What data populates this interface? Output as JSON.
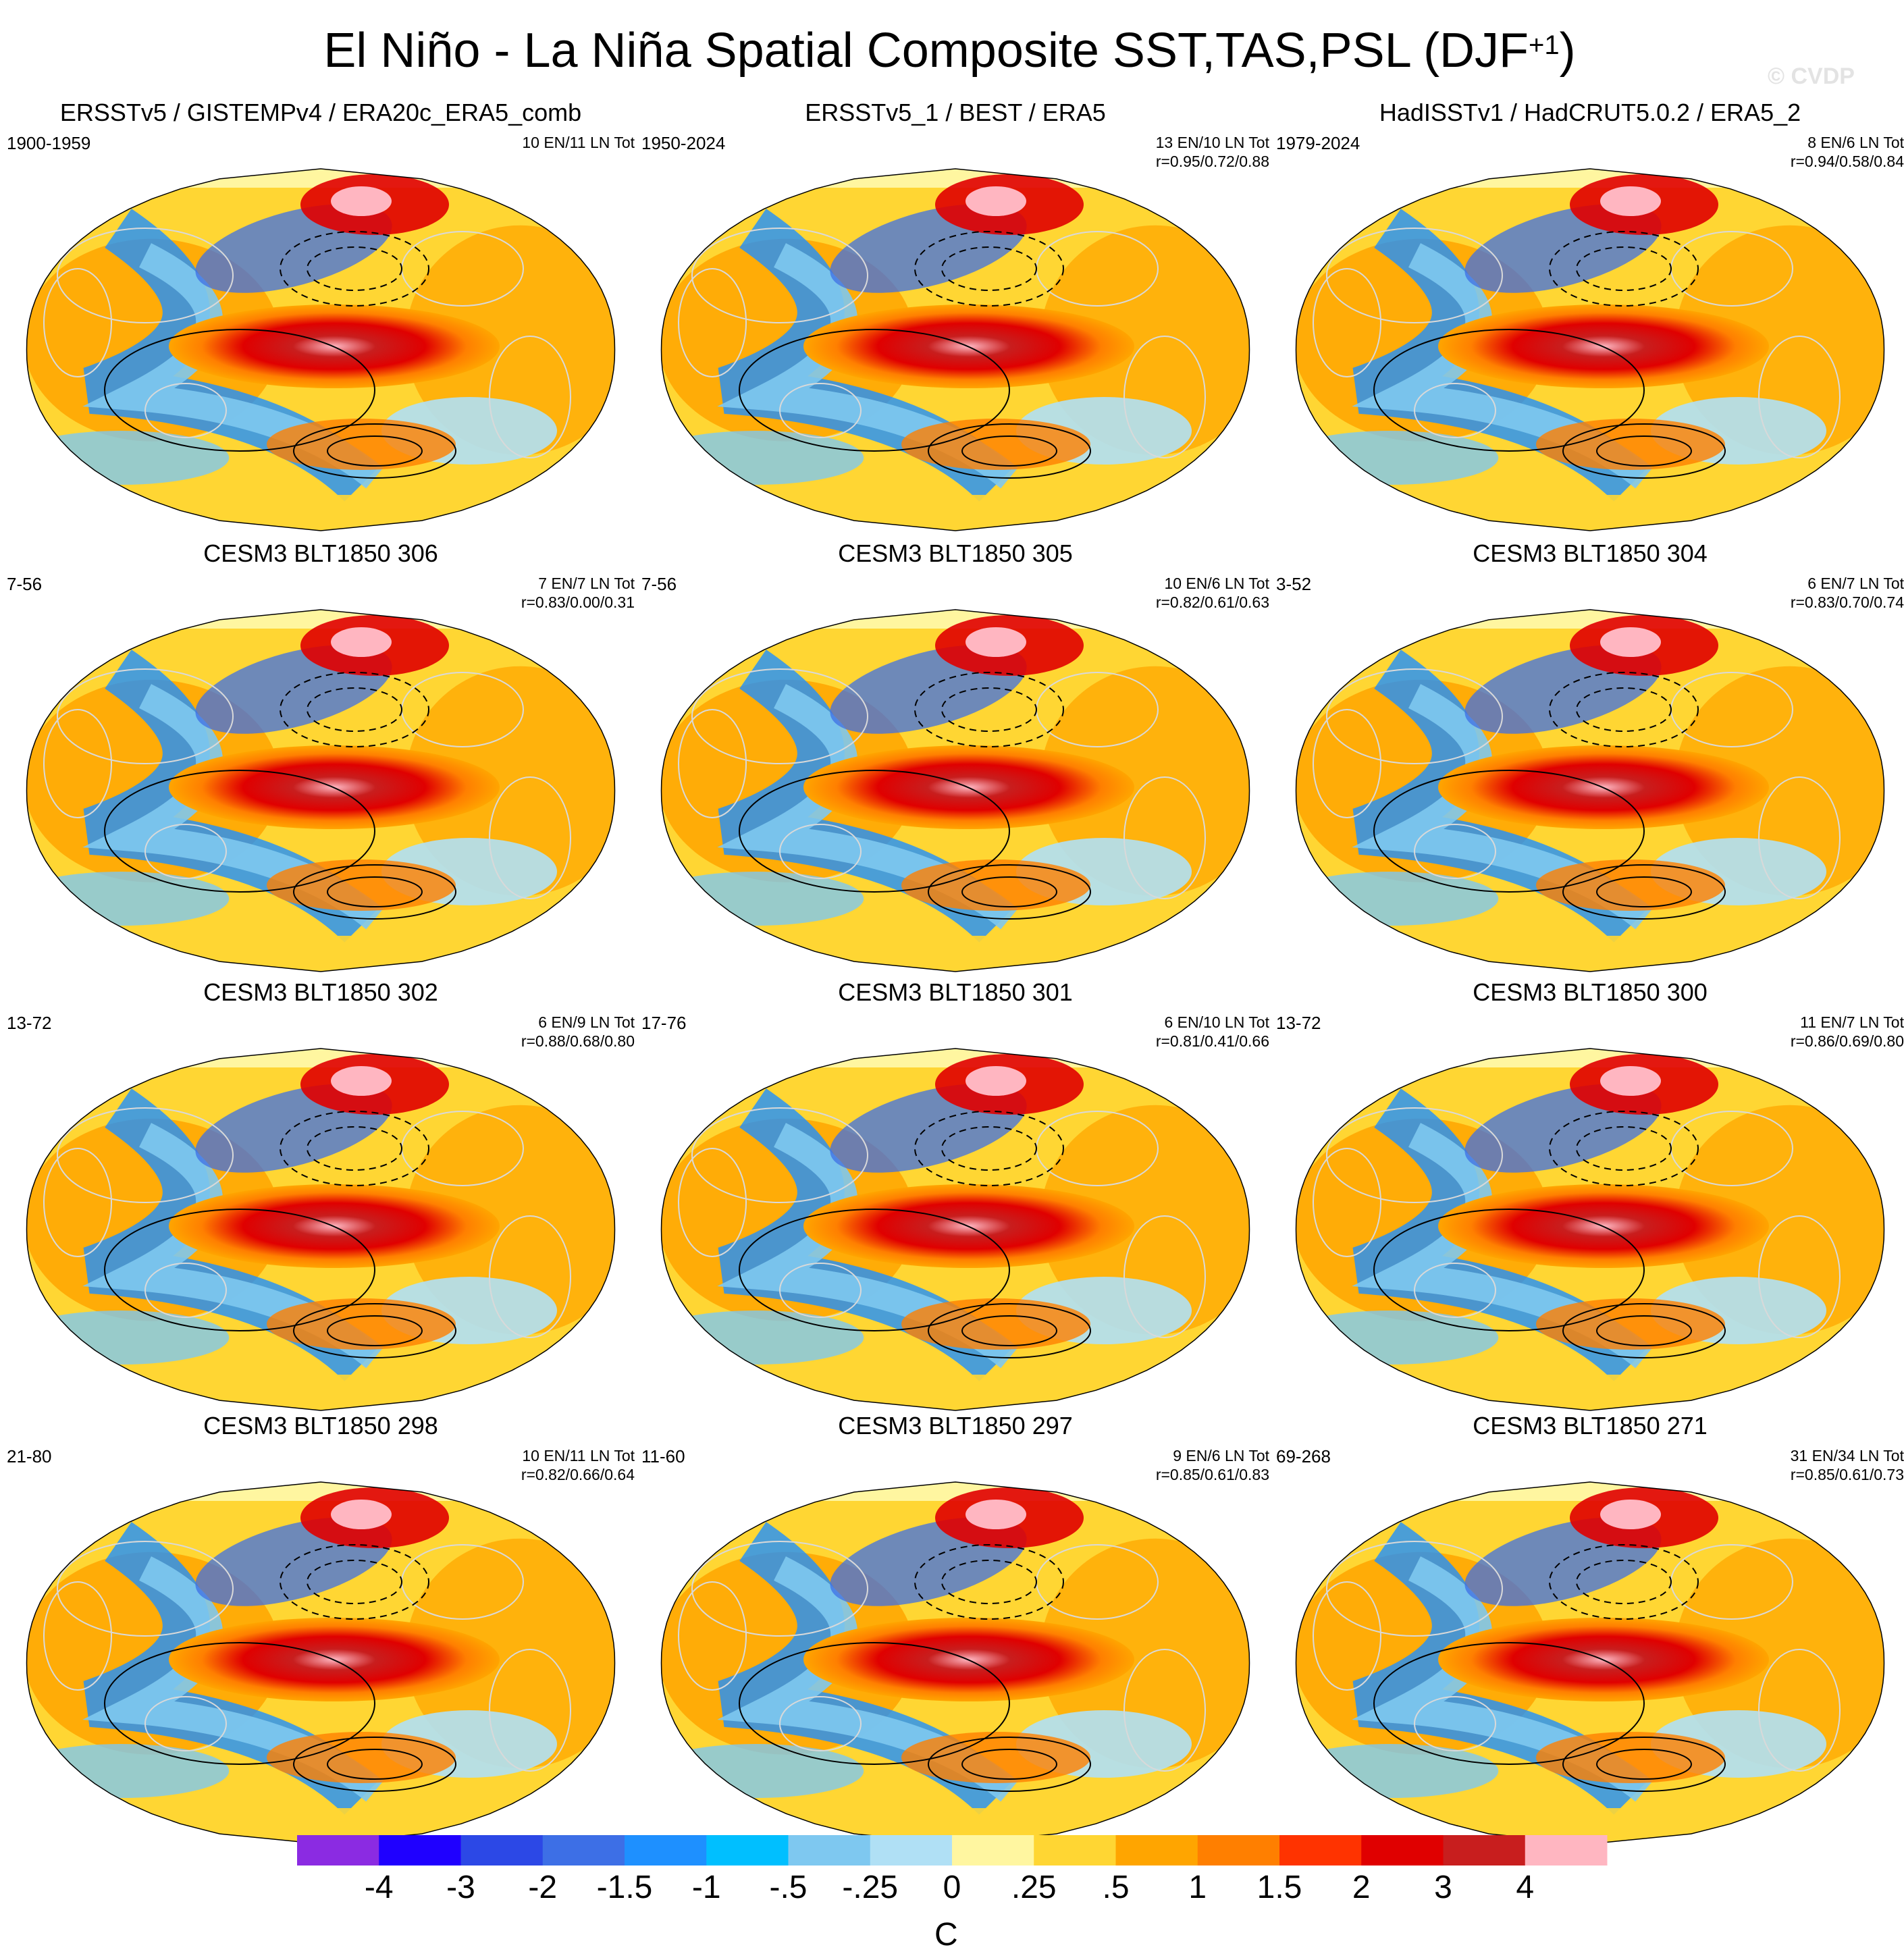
{
  "header": {
    "title_main": "El Niño - La Niña Spatial Composite SST,TAS,PSL (DJF",
    "title_sup": "+1",
    "title_close": ")",
    "watermark": "© CVDP"
  },
  "panels": [
    {
      "title": "ERSSTv5 / GISTEMPv4 / ERA20c_ERA5_comb",
      "period": "1900-1959",
      "counts": "10 EN/11 LN Tot",
      "r": ""
    },
    {
      "title": "ERSSTv5_1 / BEST / ERA5",
      "period": "1950-2024",
      "counts": "13 EN/10 LN Tot",
      "r": "r=0.95/0.72/0.88"
    },
    {
      "title": "HadISSTv1 / HadCRUT5.0.2 / ERA5_2",
      "period": "1979-2024",
      "counts": "8 EN/6 LN Tot",
      "r": "r=0.94/0.58/0.84"
    },
    {
      "title": "CESM3 BLT1850 306",
      "period": "7-56",
      "counts": "7 EN/7 LN Tot",
      "r": "r=0.83/0.00/0.31"
    },
    {
      "title": "CESM3 BLT1850 305",
      "period": "7-56",
      "counts": "10 EN/6 LN Tot",
      "r": "r=0.82/0.61/0.63"
    },
    {
      "title": "CESM3 BLT1850 304",
      "period": "3-52",
      "counts": "6 EN/7 LN Tot",
      "r": "r=0.83/0.70/0.74"
    },
    {
      "title": "CESM3 BLT1850 302",
      "period": "13-72",
      "counts": "6 EN/9 LN Tot",
      "r": "r=0.88/0.68/0.80"
    },
    {
      "title": "CESM3 BLT1850 301",
      "period": "17-76",
      "counts": "6 EN/10 LN Tot",
      "r": "r=0.81/0.41/0.66"
    },
    {
      "title": "CESM3 BLT1850 300",
      "period": "13-72",
      "counts": "11 EN/7 LN Tot",
      "r": "r=0.86/0.69/0.80"
    },
    {
      "title": "CESM3 BLT1850 298",
      "period": "21-80",
      "counts": "10 EN/11 LN Tot",
      "r": "r=0.82/0.66/0.64"
    },
    {
      "title": "CESM3 BLT1850 297",
      "period": "11-60",
      "counts": "9 EN/6 LN Tot",
      "r": "r=0.85/0.61/0.83"
    },
    {
      "title": "CESM3 BLT1850 271",
      "period": "69-268",
      "counts": "31 EN/34 LN Tot",
      "r": "r=0.85/0.61/0.73"
    }
  ],
  "chart_data": {
    "type": "heatmap",
    "projection": "Robinson world map, Pacific-centered",
    "variables": [
      "SST",
      "TAS",
      "PSL (contours)"
    ],
    "season": "DJF+1",
    "colorbar": {
      "unit": "C",
      "tick_labels": [
        "-4",
        "-3",
        "-2",
        "-1.5",
        "-1",
        "-.5",
        "-.25",
        "0",
        ".25",
        ".5",
        "1",
        "1.5",
        "2",
        "3",
        "4"
      ],
      "tick_values": [
        -4,
        -3,
        -2,
        -1.5,
        -1,
        -0.5,
        -0.25,
        0,
        0.25,
        0.5,
        1,
        1.5,
        2,
        3,
        4
      ],
      "colors": [
        "#8b2be2",
        "#1f00ff",
        "#2c48e6",
        "#3d6fe6",
        "#1e90ff",
        "#00bfff",
        "#7ec8f0",
        "#b0e0f5",
        "#fff6a0",
        "#ffd633",
        "#ffa500",
        "#ff7f00",
        "#ff3300",
        "#e00000",
        "#c81e1e",
        "#ffb6c1"
      ]
    }
  }
}
